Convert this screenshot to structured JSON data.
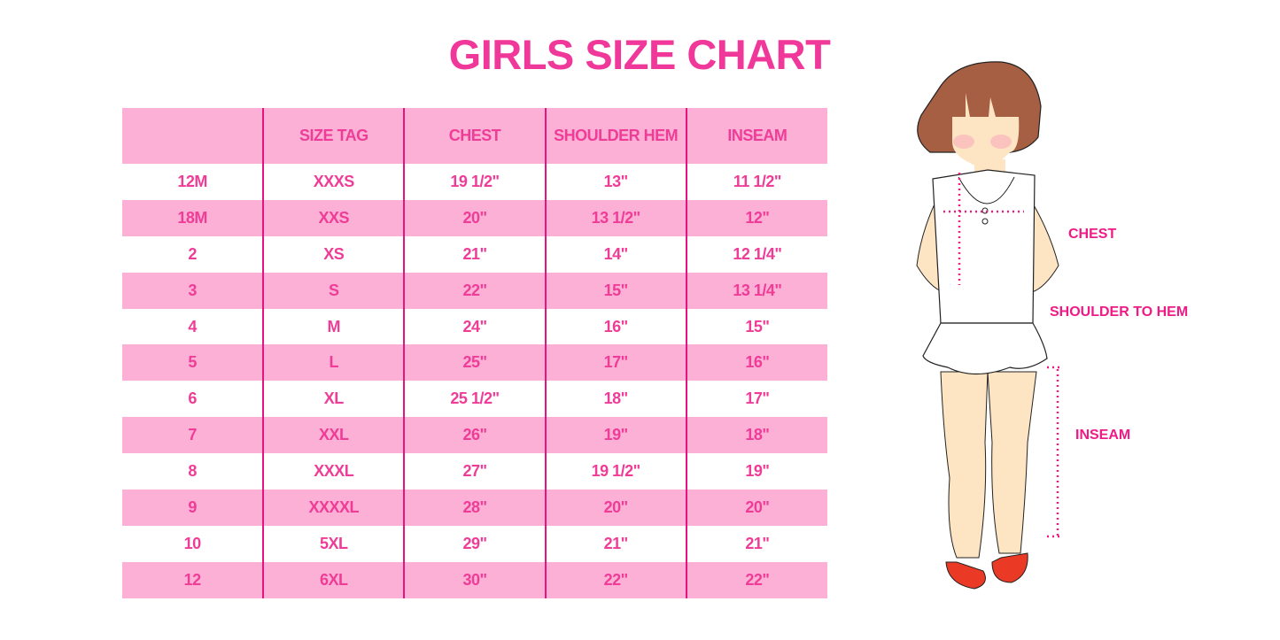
{
  "title": "GIRLS SIZE CHART",
  "table": {
    "headers": [
      "",
      "SIZE TAG",
      "CHEST",
      "SHOULDER HEM",
      "INSEAM"
    ],
    "rows": [
      [
        "12M",
        "XXXS",
        "19 1/2\"",
        "13\"",
        "11 1/2\""
      ],
      [
        "18M",
        "XXS",
        "20\"",
        "13 1/2\"",
        "12\""
      ],
      [
        "2",
        "XS",
        "21\"",
        "14\"",
        "12 1/4\""
      ],
      [
        "3",
        "S",
        "22\"",
        "15\"",
        "13 1/4\""
      ],
      [
        "4",
        "M",
        "24\"",
        "16\"",
        "15\""
      ],
      [
        "5",
        "L",
        "25\"",
        "17\"",
        "16\""
      ],
      [
        "6",
        "XL",
        "25 1/2\"",
        "18\"",
        "17\""
      ],
      [
        "7",
        "XXL",
        "26\"",
        "19\"",
        "18\""
      ],
      [
        "8",
        "XXXL",
        "27\"",
        "19 1/2\"",
        "19\""
      ],
      [
        "9",
        "XXXXL",
        "28\"",
        "20\"",
        "20\""
      ],
      [
        "10",
        "5XL",
        "29\"",
        "21\"",
        "21\""
      ],
      [
        "12",
        "6XL",
        "30\"",
        "22\"",
        "22\""
      ]
    ]
  },
  "figure": {
    "labels": {
      "chest": "CHEST",
      "shoulder_to_hem": "SHOULDER TO HEM",
      "inseam": "INSEAM"
    }
  },
  "colors": {
    "accent": "#ef3c97",
    "row_pink": "#fcb0d6",
    "divider": "#e5157f"
  }
}
